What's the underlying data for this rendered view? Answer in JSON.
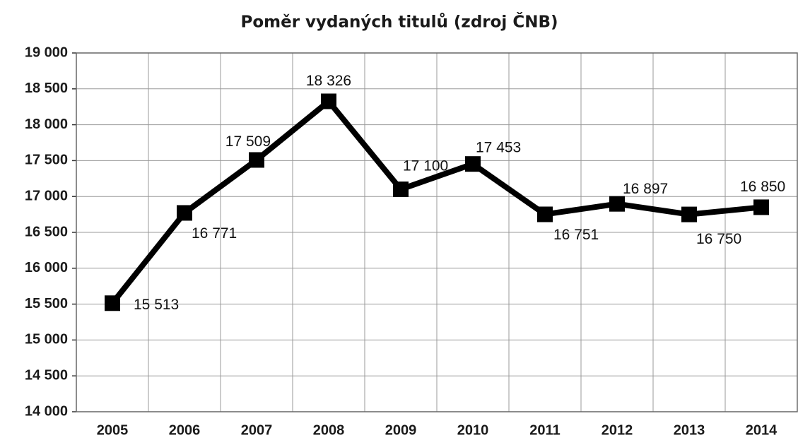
{
  "chart_data": {
    "type": "line",
    "title": "Poměr vydaných titulů (zdroj ČNB)",
    "categories": [
      "2005",
      "2006",
      "2007",
      "2008",
      "2009",
      "2010",
      "2011",
      "2012",
      "2013",
      "2014"
    ],
    "values": [
      15513,
      16771,
      17509,
      18326,
      17100,
      17453,
      16751,
      16897,
      16750,
      16850
    ],
    "value_labels": [
      "15 513",
      "16 771",
      "17 509",
      "18 326",
      "17 100",
      "17 453",
      "16 751",
      "16 897",
      "16 750",
      "16 850"
    ],
    "color": "#000000",
    "ylim": [
      14000,
      19000
    ],
    "yticks": [
      {
        "value": 14000,
        "label": "14 000"
      },
      {
        "value": 14500,
        "label": "14 500"
      },
      {
        "value": 15000,
        "label": "15 000"
      },
      {
        "value": 15500,
        "label": "15 500"
      },
      {
        "value": 16000,
        "label": "16 000"
      },
      {
        "value": 16500,
        "label": "16 500"
      },
      {
        "value": 17000,
        "label": "17 000"
      },
      {
        "value": 17500,
        "label": "17 500"
      },
      {
        "value": 18000,
        "label": "18 000"
      },
      {
        "value": 18500,
        "label": "18 500"
      },
      {
        "value": 19000,
        "label": "19 000"
      }
    ],
    "grid": true
  }
}
